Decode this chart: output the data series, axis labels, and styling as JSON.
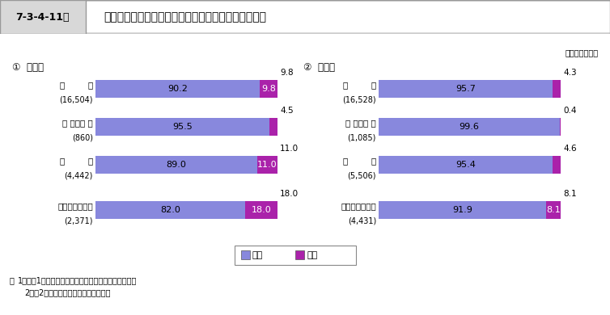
{
  "title_box": "7-3-4-11図",
  "title_text": "新受刑者の初入者・再入者別・罪名別の男女別構成比",
  "year_label": "（平成１８年）",
  "section1_title": "①  初入者",
  "section2_title": "②  再入者",
  "left_categories": [
    {
      "line1": "総",
      "line2": "数",
      "sub": "(16,504)",
      "male": 90.2,
      "female": 9.8
    },
    {
      "line1": "傷 書・暴 行",
      "line2": "",
      "sub": "(860)",
      "male": 95.5,
      "female": 4.5
    },
    {
      "line1": "窣",
      "line2": "盗",
      "sub": "(4,442)",
      "male": 89.0,
      "female": 11.0
    },
    {
      "line1": "覚せい剤取締法",
      "line2": "",
      "sub": "(2,371)",
      "male": 82.0,
      "female": 18.0
    }
  ],
  "right_categories": [
    {
      "line1": "総",
      "line2": "数",
      "sub": "(16,528)",
      "male": 95.7,
      "female": 4.3
    },
    {
      "line1": "傷 書・暴 行",
      "line2": "",
      "sub": "(1,085)",
      "male": 99.6,
      "female": 0.4
    },
    {
      "line1": "窣",
      "line2": "盗",
      "sub": "(5,506)",
      "male": 95.4,
      "female": 4.6
    },
    {
      "line1": "覚せい剤取締法",
      "line2": "",
      "sub": "(4,431)",
      "male": 91.9,
      "female": 8.1
    }
  ],
  "male_color": "#8888dd",
  "female_color": "#aa22aa",
  "note_line1": "注　1　法務省大臣官房司法法制部の資料による。",
  "note_line2": "　2　（　）内は，実人員である。",
  "legend_male": "男子",
  "legend_female": "女子"
}
